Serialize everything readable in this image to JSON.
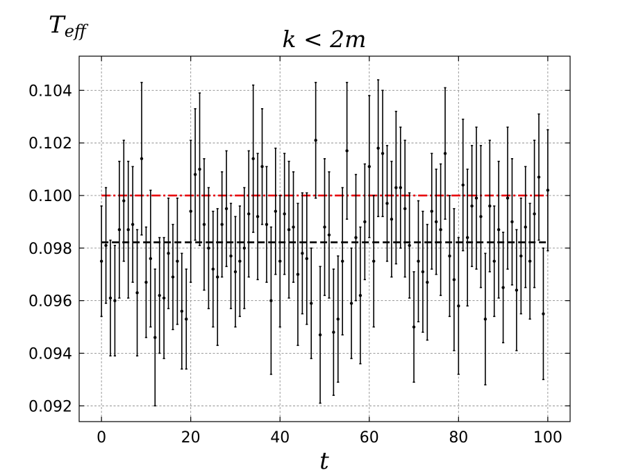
{
  "chart_data": {
    "type": "scatter",
    "title": "k < 2m",
    "xlabel": "t",
    "ylabel_main": "T",
    "ylabel_sub": "eff",
    "xlim": [
      -5,
      105
    ],
    "ylim": [
      0.0914,
      0.1053
    ],
    "xticks": [
      0,
      20,
      40,
      60,
      80,
      100
    ],
    "xtick_labels": [
      "0",
      "20",
      "40",
      "60",
      "80",
      "100"
    ],
    "yticks": [
      0.092,
      0.094,
      0.096,
      0.098,
      0.1,
      0.102,
      0.104
    ],
    "ytick_labels": [
      "0.092",
      "0.094",
      "0.096",
      "0.098",
      "0.100",
      "0.102",
      "0.104"
    ],
    "grid": true,
    "reference_lines": [
      {
        "y": 0.1,
        "color": "#e8000b",
        "style": "dashdot",
        "x_range": [
          0,
          100
        ]
      },
      {
        "y": 0.09822,
        "color": "#000000",
        "style": "dashed",
        "x_range": [
          0,
          100
        ]
      }
    ],
    "series": [
      {
        "color": "#000000",
        "x": [
          0,
          1,
          2,
          3,
          4,
          5,
          6,
          7,
          8,
          9,
          10,
          11,
          12,
          13,
          14,
          15,
          16,
          17,
          18,
          19,
          20,
          21,
          22,
          23,
          24,
          25,
          26,
          27,
          28,
          29,
          30,
          31,
          32,
          33,
          34,
          35,
          36,
          37,
          38,
          39,
          40,
          41,
          42,
          43,
          44,
          45,
          46,
          47,
          48,
          49,
          50,
          51,
          52,
          53,
          54,
          55,
          56,
          57,
          58,
          59,
          60,
          61,
          62,
          63,
          64,
          65,
          66,
          67,
          68,
          69,
          70,
          71,
          72,
          73,
          74,
          75,
          76,
          77,
          78,
          79,
          80,
          81,
          82,
          83,
          84,
          85,
          86,
          87,
          88,
          89,
          90,
          91,
          92,
          93,
          94,
          95,
          96,
          97,
          98,
          99,
          100
        ],
        "y": [
          0.0975,
          0.0981,
          0.0961,
          0.096,
          0.0987,
          0.0998,
          0.0987,
          0.0989,
          0.0963,
          0.1014,
          0.0967,
          0.0976,
          0.0946,
          0.0962,
          0.0961,
          0.0978,
          0.0969,
          0.0975,
          0.0956,
          0.0953,
          0.0994,
          0.1008,
          0.101,
          0.0989,
          0.098,
          0.0972,
          0.0969,
          0.0989,
          0.0995,
          0.0977,
          0.0971,
          0.0975,
          0.098,
          0.0993,
          0.1014,
          0.0992,
          0.1011,
          0.0989,
          0.096,
          0.0994,
          0.0975,
          0.0993,
          0.0987,
          0.0988,
          0.097,
          0.0978,
          0.0976,
          0.0959,
          0.1021,
          0.0947,
          0.0988,
          0.0985,
          0.0948,
          0.0953,
          0.0975,
          0.1017,
          0.0959,
          0.0984,
          0.0962,
          0.099,
          0.1011,
          0.0975,
          0.1018,
          0.1016,
          0.0997,
          0.0991,
          0.1003,
          0.1003,
          0.0995,
          0.0981,
          0.095,
          0.0975,
          0.0971,
          0.0967,
          0.0994,
          0.099,
          0.0987,
          0.1016,
          0.0977,
          0.0968,
          0.0958,
          0.1004,
          0.0984,
          0.0996,
          0.0999,
          0.0992,
          0.0953,
          0.0996,
          0.0975,
          0.0987,
          0.0965,
          0.0999,
          0.099,
          0.0964,
          0.0977,
          0.0988,
          0.0975,
          0.0993,
          0.1007,
          0.0955,
          0.1002
        ],
        "yerr": [
          0.0021,
          0.0022,
          0.0022,
          0.0021,
          0.0026,
          0.0023,
          0.0026,
          0.0022,
          0.0024,
          0.0029,
          0.0021,
          0.0026,
          0.0026,
          0.0022,
          0.0023,
          0.0021,
          0.002,
          0.0024,
          0.0022,
          0.0019,
          0.0027,
          0.0025,
          0.0029,
          0.0025,
          0.0023,
          0.0022,
          0.0026,
          0.002,
          0.0022,
          0.002,
          0.0021,
          0.0021,
          0.0023,
          0.0024,
          0.0028,
          0.0024,
          0.0022,
          0.0022,
          0.0028,
          0.0024,
          0.0025,
          0.0023,
          0.0026,
          0.0021,
          0.0027,
          0.0023,
          0.0025,
          0.0021,
          0.0022,
          0.0026,
          0.0026,
          0.0024,
          0.0024,
          0.0024,
          0.0028,
          0.0026,
          0.0021,
          0.0024,
          0.0026,
          0.0022,
          0.0027,
          0.0025,
          0.0026,
          0.0024,
          0.0022,
          0.0022,
          0.0029,
          0.0023,
          0.0026,
          0.002,
          0.0021,
          0.0023,
          0.0023,
          0.0022,
          0.0022,
          0.002,
          0.0025,
          0.0025,
          0.0023,
          0.0027,
          0.0026,
          0.0025,
          0.0026,
          0.0023,
          0.0027,
          0.0027,
          0.0025,
          0.0025,
          0.0021,
          0.0026,
          0.0021,
          0.0027,
          0.0024,
          0.0023,
          0.0022,
          0.0023,
          0.0022,
          0.0028,
          0.0024,
          0.0025,
          0.0023
        ]
      }
    ]
  }
}
